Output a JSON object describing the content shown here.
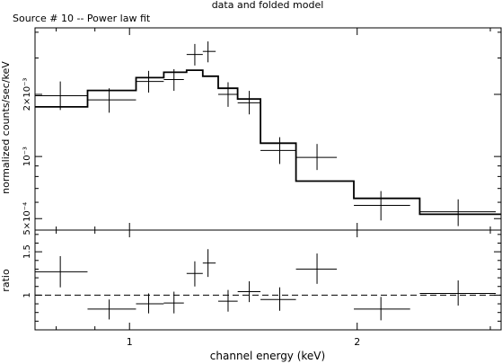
{
  "header": {
    "title": "data and folded model",
    "subtitle": "Source # 10 -- Power law fit"
  },
  "chart_data": [
    {
      "type": "scatter",
      "panel": "spectrum",
      "title": "data and folded model",
      "xlabel": "channel energy (keV)",
      "ylabel": "normalized counts/sec/keV",
      "xscale": "log",
      "yscale": "log",
      "xlim": [
        0.75,
        3.1
      ],
      "ylim": [
        0.00044,
        0.0042
      ],
      "yticks": [
        {
          "value": 0.0005,
          "label": "5×10⁻⁴"
        },
        {
          "value": 0.001,
          "label": "10⁻³"
        },
        {
          "value": 0.002,
          "label": "2×10⁻³"
        }
      ],
      "data": [
        {
          "x": 0.81,
          "xlo": 0.75,
          "xhi": 0.88,
          "y": 0.00197,
          "ylo": 0.00168,
          "yhi": 0.00231
        },
        {
          "x": 0.94,
          "xlo": 0.88,
          "xhi": 1.02,
          "y": 0.00188,
          "ylo": 0.00163,
          "yhi": 0.00214
        },
        {
          "x": 1.06,
          "xlo": 1.02,
          "xhi": 1.11,
          "y": 0.00231,
          "ylo": 0.00204,
          "yhi": 0.0026
        },
        {
          "x": 1.145,
          "xlo": 1.11,
          "xhi": 1.18,
          "y": 0.00236,
          "ylo": 0.00208,
          "yhi": 0.00265
        },
        {
          "x": 1.22,
          "xlo": 1.19,
          "xhi": 1.25,
          "y": 0.00312,
          "ylo": 0.00276,
          "yhi": 0.00351
        },
        {
          "x": 1.27,
          "xlo": 1.25,
          "xhi": 1.3,
          "y": 0.00323,
          "ylo": 0.00286,
          "yhi": 0.00361
        },
        {
          "x": 1.35,
          "xlo": 1.31,
          "xhi": 1.39,
          "y": 0.002,
          "ylo": 0.00174,
          "yhi": 0.00229
        },
        {
          "x": 1.44,
          "xlo": 1.39,
          "xhi": 1.49,
          "y": 0.00182,
          "ylo": 0.0016,
          "yhi": 0.00208
        },
        {
          "x": 1.58,
          "xlo": 1.49,
          "xhi": 1.66,
          "y": 0.00107,
          "ylo": 0.00092,
          "yhi": 0.00124
        },
        {
          "x": 1.77,
          "xlo": 1.66,
          "xhi": 1.88,
          "y": 0.00099,
          "ylo": 0.00086,
          "yhi": 0.00115
        },
        {
          "x": 2.15,
          "xlo": 1.98,
          "xhi": 2.35,
          "y": 0.00058,
          "ylo": 0.00049,
          "yhi": 0.00068
        },
        {
          "x": 2.72,
          "xlo": 2.42,
          "xhi": 3.05,
          "y": 0.00054,
          "ylo": 0.00046,
          "yhi": 0.00062
        }
      ],
      "model_steps": [
        {
          "xlo": 0.75,
          "xhi": 0.88,
          "y": 0.00174
        },
        {
          "xlo": 0.88,
          "xhi": 1.02,
          "y": 0.00209
        },
        {
          "xlo": 1.02,
          "xhi": 1.11,
          "y": 0.00241
        },
        {
          "xlo": 1.11,
          "xhi": 1.19,
          "y": 0.00256
        },
        {
          "xlo": 1.19,
          "xhi": 1.25,
          "y": 0.00262
        },
        {
          "xlo": 1.25,
          "xhi": 1.31,
          "y": 0.00245
        },
        {
          "xlo": 1.31,
          "xhi": 1.39,
          "y": 0.00214
        },
        {
          "xlo": 1.39,
          "xhi": 1.49,
          "y": 0.0019
        },
        {
          "xlo": 1.49,
          "xhi": 1.66,
          "y": 0.00116
        },
        {
          "xlo": 1.66,
          "xhi": 1.98,
          "y": 0.00076
        },
        {
          "xlo": 1.98,
          "xhi": 2.42,
          "y": 0.000627
        },
        {
          "xlo": 2.42,
          "xhi": 3.1,
          "y": 0.000525
        }
      ]
    },
    {
      "type": "scatter",
      "panel": "ratio",
      "xlabel": "channel energy (keV)",
      "ylabel": "ratio",
      "xscale": "log",
      "xlim": [
        0.75,
        3.1
      ],
      "ylim": [
        0.6,
        1.75
      ],
      "xticks": [
        {
          "value": 1,
          "label": "1"
        },
        {
          "value": 2,
          "label": "2"
        }
      ],
      "yticks": [
        {
          "value": 1,
          "label": "1"
        },
        {
          "value": 1.5,
          "label": "1.5"
        }
      ],
      "reference_line": 1,
      "data": [
        {
          "x": 0.81,
          "xlo": 0.75,
          "xhi": 0.88,
          "y": 1.27,
          "ylo": 1.09,
          "yhi": 1.45
        },
        {
          "x": 0.94,
          "xlo": 0.88,
          "xhi": 1.02,
          "y": 0.84,
          "ylo": 0.72,
          "yhi": 0.95
        },
        {
          "x": 1.06,
          "xlo": 1.02,
          "xhi": 1.11,
          "y": 0.9,
          "ylo": 0.79,
          "yhi": 1.02
        },
        {
          "x": 1.145,
          "xlo": 1.11,
          "xhi": 1.18,
          "y": 0.91,
          "ylo": 0.79,
          "yhi": 1.04
        },
        {
          "x": 1.22,
          "xlo": 1.19,
          "xhi": 1.25,
          "y": 1.25,
          "ylo": 1.1,
          "yhi": 1.39
        },
        {
          "x": 1.27,
          "xlo": 1.25,
          "xhi": 1.3,
          "y": 1.37,
          "ylo": 1.21,
          "yhi": 1.53
        },
        {
          "x": 1.35,
          "xlo": 1.31,
          "xhi": 1.39,
          "y": 0.93,
          "ylo": 0.81,
          "yhi": 1.06
        },
        {
          "x": 1.44,
          "xlo": 1.39,
          "xhi": 1.49,
          "y": 1.04,
          "ylo": 0.92,
          "yhi": 1.16
        },
        {
          "x": 1.58,
          "xlo": 1.49,
          "xhi": 1.66,
          "y": 0.95,
          "ylo": 0.82,
          "yhi": 1.09
        },
        {
          "x": 1.77,
          "xlo": 1.66,
          "xhi": 1.88,
          "y": 1.3,
          "ylo": 1.13,
          "yhi": 1.48
        },
        {
          "x": 2.15,
          "xlo": 1.98,
          "xhi": 2.35,
          "y": 0.84,
          "ylo": 0.71,
          "yhi": 0.98
        },
        {
          "x": 2.72,
          "xlo": 2.42,
          "xhi": 3.05,
          "y": 1.02,
          "ylo": 0.88,
          "yhi": 1.17
        }
      ]
    }
  ]
}
